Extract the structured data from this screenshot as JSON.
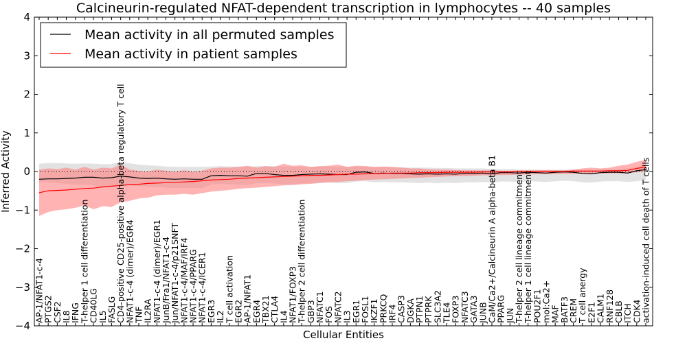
{
  "chart_data": {
    "type": "line",
    "title": "Calcineurin-regulated NFAT-dependent transcription in lymphocytes -- 40 samples",
    "xlabel": "Cellular Entities",
    "ylabel": "Inferred Activity",
    "ylim": [
      -4,
      4
    ],
    "yticks": [
      -4,
      -3,
      -2,
      -1,
      0,
      1,
      2,
      3,
      4
    ],
    "legend_position": "top-left",
    "categories": [
      "AP-1/NFAT1-c-4",
      "PTGS2",
      "CSF2",
      "IL8",
      "IFNG",
      "T-helper 1 cell differentiation",
      "CD40LG",
      "IL5",
      "FASLG",
      "CD4-positive CD25-positive alpha-beta regulatory T cell",
      "NFAT1-c-4 (dimer)/EGR4",
      "TNF",
      "IL2RA",
      "NFAT1-c-4 (dimer)/EGR1",
      "JunB/Fra1/NFAT1-c-4",
      "Jun/NFAT1-c-4/p21SNFT",
      "NFAT1-c-4/MAF/IRF4",
      "NFAT1-c-4/PPARG",
      "NFAT1-c-4/ICER1",
      "EGR3",
      "IL2",
      "T cell activation",
      "EGR2",
      "AP-1/NFAT1",
      "EGR4",
      "TBX21",
      "CTLA4",
      "IL4",
      "NFAT1/FOXP3",
      "T-helper 2 cell differentiation",
      "GBP3",
      "NFATC1",
      "FOS",
      "NFATC2",
      "IL3",
      "EGR1",
      "FOSL1",
      "IKZF1",
      "PRKCQ",
      "IRF4",
      "CASP3",
      "DGKA",
      "PTPN1",
      "PTPRK",
      "SLC3A2",
      "TLE4",
      "FOXP3",
      "NFATC3",
      "GATA3",
      "JUNB",
      "CaM/Ca2+/Calcineurin A alpha-beta B1",
      "PPARG",
      "JUN",
      "T-helper 2 cell lineage commitment",
      "T-helper 1 cell lineage commitment",
      "POU2F1",
      "mol:Ca2+",
      "MAF",
      "BATF3",
      "CREM",
      "T cell anergy",
      "E2F1",
      "CALM1",
      "RNF128",
      "CBLB",
      "ITCH",
      "CDK4",
      "activation-induced cell death of T cells"
    ],
    "series": [
      {
        "name": "Mean activity in all permuted samples",
        "color": "#000000",
        "values": [
          -0.2,
          -0.19,
          -0.19,
          -0.18,
          -0.17,
          -0.15,
          -0.15,
          -0.17,
          -0.16,
          -0.12,
          -0.14,
          -0.17,
          -0.18,
          -0.17,
          -0.19,
          -0.2,
          -0.19,
          -0.2,
          -0.2,
          -0.11,
          -0.1,
          -0.11,
          -0.11,
          -0.12,
          -0.05,
          -0.05,
          -0.08,
          -0.1,
          -0.1,
          -0.08,
          -0.07,
          -0.06,
          -0.07,
          -0.08,
          -0.08,
          -0.02,
          -0.01,
          -0.05,
          -0.04,
          -0.05,
          -0.05,
          -0.06,
          -0.07,
          -0.06,
          -0.07,
          -0.06,
          -0.07,
          -0.05,
          -0.05,
          -0.04,
          -0.06,
          -0.03,
          -0.03,
          -0.04,
          -0.02,
          -0.03,
          -0.04,
          -0.02,
          -0.01,
          -0.02,
          -0.05,
          -0.06,
          -0.03,
          -0.02,
          -0.02,
          -0.04,
          0.02,
          0.05
        ],
        "band_low": [
          -0.28,
          -0.28,
          -0.3,
          -0.32,
          -0.35,
          -0.34,
          -0.36,
          -0.4,
          -0.38,
          -0.34,
          -0.36,
          -0.38,
          -0.4,
          -0.4,
          -0.42,
          -0.43,
          -0.42,
          -0.43,
          -0.43,
          -0.34,
          -0.32,
          -0.33,
          -0.34,
          -0.35,
          -0.3,
          -0.3,
          -0.31,
          -0.33,
          -0.33,
          -0.31,
          -0.3,
          -0.28,
          -0.29,
          -0.3,
          -0.3,
          -0.26,
          -0.25,
          -0.28,
          -0.27,
          -0.28,
          -0.28,
          -0.29,
          -0.3,
          -0.29,
          -0.3,
          -0.29,
          -0.3,
          -0.28,
          -0.28,
          -0.27,
          -0.29,
          -0.26,
          -0.26,
          -0.27,
          -0.25,
          -0.26,
          -0.27,
          -0.25,
          -0.24,
          -0.25,
          -0.28,
          -0.29,
          -0.26,
          -0.25,
          -0.25,
          -0.27,
          -0.25,
          -0.22
        ],
        "band_high": [
          0.2,
          0.22,
          0.22,
          0.21,
          0.2,
          0.21,
          0.2,
          0.19,
          0.19,
          0.25,
          0.21,
          0.18,
          0.16,
          0.15,
          0.13,
          0.12,
          0.12,
          0.12,
          0.12,
          0.13,
          0.14,
          0.13,
          0.13,
          0.12,
          0.14,
          0.14,
          0.14,
          0.13,
          0.12,
          0.12,
          0.12,
          0.13,
          0.13,
          0.12,
          0.12,
          0.13,
          0.13,
          0.12,
          0.12,
          0.11,
          0.11,
          0.1,
          0.1,
          0.1,
          0.09,
          0.09,
          0.08,
          0.08,
          0.08,
          0.08,
          0.07,
          0.06,
          0.06,
          0.05,
          0.05,
          0.05,
          0.04,
          0.05,
          0.05,
          0.05,
          0.05,
          0.05,
          0.06,
          0.06,
          0.06,
          0.08,
          0.12,
          0.15
        ]
      },
      {
        "name": "Mean activity in patient samples",
        "color": "#ff0000",
        "values": [
          -0.55,
          -0.5,
          -0.49,
          -0.48,
          -0.46,
          -0.44,
          -0.43,
          -0.4,
          -0.38,
          -0.36,
          -0.34,
          -0.33,
          -0.31,
          -0.3,
          -0.29,
          -0.28,
          -0.27,
          -0.26,
          -0.24,
          -0.22,
          -0.21,
          -0.2,
          -0.18,
          -0.17,
          -0.16,
          -0.15,
          -0.14,
          -0.13,
          -0.12,
          -0.11,
          -0.1,
          -0.1,
          -0.09,
          -0.08,
          -0.07,
          -0.07,
          -0.06,
          -0.05,
          -0.05,
          -0.04,
          -0.04,
          -0.04,
          -0.03,
          -0.03,
          -0.03,
          -0.02,
          -0.02,
          -0.02,
          -0.02,
          -0.01,
          -0.01,
          -0.01,
          -0.01,
          0.0,
          0.0,
          0.0,
          0.0,
          0.0,
          0.0,
          0.01,
          0.01,
          0.01,
          0.01,
          0.02,
          0.02,
          0.03,
          0.08,
          0.12
        ],
        "band_low": [
          -1.15,
          -1.05,
          -1.0,
          -0.98,
          -0.94,
          -0.88,
          -0.98,
          -0.9,
          -0.92,
          -0.8,
          -0.76,
          -0.7,
          -0.68,
          -0.62,
          -0.6,
          -0.6,
          -0.58,
          -0.6,
          -0.56,
          -0.52,
          -0.5,
          -0.48,
          -0.45,
          -0.43,
          -0.42,
          -0.4,
          -0.38,
          -0.36,
          -0.35,
          -0.33,
          -0.32,
          -0.3,
          -0.28,
          -0.27,
          -0.25,
          -0.24,
          -0.22,
          -0.21,
          -0.2,
          -0.19,
          -0.18,
          -0.17,
          -0.16,
          -0.15,
          -0.14,
          -0.13,
          -0.12,
          -0.12,
          -0.11,
          -0.1,
          -0.1,
          -0.09,
          -0.09,
          -0.08,
          -0.08,
          -0.07,
          -0.07,
          -0.07,
          -0.06,
          -0.06,
          -0.06,
          -0.06,
          -0.05,
          -0.05,
          -0.05,
          -0.05,
          -0.02,
          0.0
        ],
        "band_high": [
          0.05,
          0.08,
          0.06,
          0.1,
          0.05,
          0.12,
          0.05,
          0.1,
          0.08,
          0.18,
          0.05,
          0.02,
          0.0,
          0.05,
          0.02,
          0.0,
          0.03,
          0.0,
          0.02,
          0.08,
          0.1,
          0.1,
          0.12,
          0.15,
          0.1,
          0.14,
          0.12,
          0.2,
          0.15,
          0.16,
          0.12,
          0.14,
          0.15,
          0.18,
          0.12,
          0.15,
          0.14,
          0.12,
          0.13,
          0.12,
          0.1,
          0.08,
          0.08,
          0.06,
          0.05,
          0.05,
          0.04,
          0.03,
          0.03,
          0.03,
          0.03,
          0.02,
          0.02,
          0.03,
          0.03,
          0.03,
          0.04,
          0.03,
          0.03,
          0.05,
          0.08,
          0.1,
          0.08,
          0.1,
          0.15,
          0.18,
          0.25,
          0.3
        ]
      }
    ]
  },
  "colors": {
    "permuted_line": "#000000",
    "permuted_band": "#bfbfbf",
    "patient_line": "#ff0000",
    "patient_band": "#ff8080"
  }
}
